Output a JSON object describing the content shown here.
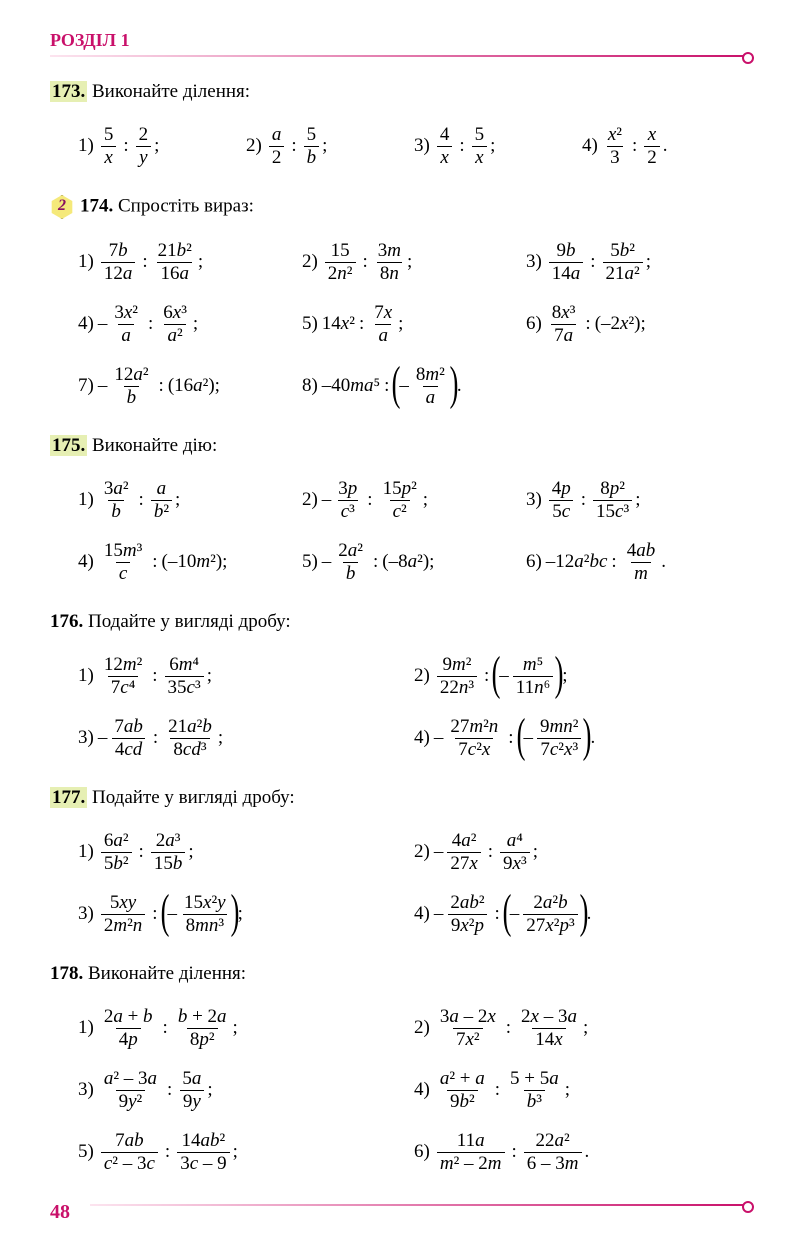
{
  "header": {
    "section": "РОЗДІЛ 1",
    "page_num": "48"
  },
  "colors": {
    "accent": "#c9106a",
    "highlight_bg": "#e6efb3",
    "badge_bg": "#f5e97a"
  },
  "problems": {
    "p173": {
      "num": "173.",
      "title": "Виконайте ділення:",
      "highlighted": true,
      "cols": 4,
      "items": [
        {
          "n": "1)",
          "a": {
            "num": "5",
            "den": "x"
          },
          "b": {
            "num": "2",
            "den": "y"
          },
          "t": ";"
        },
        {
          "n": "2)",
          "a": {
            "num": "a",
            "den": "2"
          },
          "b": {
            "num": "5",
            "den": "b"
          },
          "t": ";"
        },
        {
          "n": "3)",
          "a": {
            "num": "4",
            "den": "x"
          },
          "b": {
            "num": "5",
            "den": "x"
          },
          "t": ";"
        },
        {
          "n": "4)",
          "a": {
            "num": "x²",
            "den": "3"
          },
          "b": {
            "num": "x",
            "den": "2"
          },
          "t": "."
        }
      ]
    },
    "p174": {
      "num": "174.",
      "title": "Спростіть вираз:",
      "highlighted": false,
      "badge": "2",
      "cols": 3,
      "items": [
        {
          "n": "1)",
          "a": {
            "num": "7b",
            "den": "12a"
          },
          "b": {
            "num": "21b²",
            "den": "16a"
          },
          "t": ";"
        },
        {
          "n": "2)",
          "a": {
            "num": "15",
            "den": "2n²"
          },
          "b": {
            "num": "3m",
            "den": "8n"
          },
          "t": ";"
        },
        {
          "n": "3)",
          "a": {
            "num": "9b",
            "den": "14a"
          },
          "b": {
            "num": "5b²",
            "den": "21a²"
          },
          "t": ";"
        },
        {
          "n": "4)",
          "neg_a": true,
          "a": {
            "num": "3x²",
            "den": "a"
          },
          "b": {
            "num": "6x³",
            "den": "a²"
          },
          "t": ";"
        },
        {
          "n": "5)",
          "a_plain": "14x²",
          "b": {
            "num": "7x",
            "den": "a"
          },
          "t": ";"
        },
        {
          "n": "6)",
          "a": {
            "num": "8x³",
            "den": "7a"
          },
          "b_plain": "(–2x²)",
          "t": ";"
        },
        {
          "n": "7)",
          "neg_a": true,
          "a": {
            "num": "12a²",
            "den": "b"
          },
          "b_plain": "(16a²)",
          "t": ";"
        },
        {
          "n": "8)",
          "a_plain": "–40ma⁵",
          "b_paren": true,
          "neg_b": true,
          "b": {
            "num": "8m²",
            "den": "a"
          },
          "t": "."
        }
      ]
    },
    "p175": {
      "num": "175.",
      "title": "Виконайте дію:",
      "highlighted": true,
      "cols": 3,
      "items": [
        {
          "n": "1)",
          "a": {
            "num": "3a²",
            "den": "b"
          },
          "b": {
            "num": "a",
            "den": "b²"
          },
          "t": ";"
        },
        {
          "n": "2)",
          "neg_a": true,
          "a": {
            "num": "3p",
            "den": "c³"
          },
          "b": {
            "num": "15p²",
            "den": "c²"
          },
          "t": ";"
        },
        {
          "n": "3)",
          "a": {
            "num": "4p",
            "den": "5c"
          },
          "b": {
            "num": "8p²",
            "den": "15c³"
          },
          "t": ";"
        },
        {
          "n": "4)",
          "a": {
            "num": "15m³",
            "den": "c"
          },
          "b_plain": "(–10m²)",
          "t": ";"
        },
        {
          "n": "5)",
          "neg_a": true,
          "a": {
            "num": "2a²",
            "den": "b"
          },
          "b_plain": "(–8a²)",
          "t": ";"
        },
        {
          "n": "6)",
          "a_plain": "–12a²bc",
          "b": {
            "num": "4ab",
            "den": "m"
          },
          "t": "."
        }
      ]
    },
    "p176": {
      "num": "176.",
      "title": "Подайте у вигляді дробу:",
      "highlighted": false,
      "cols": 2,
      "items": [
        {
          "n": "1)",
          "a": {
            "num": "12m²",
            "den": "7c⁴"
          },
          "b": {
            "num": "6m⁴",
            "den": "35c³"
          },
          "t": ";"
        },
        {
          "n": "2)",
          "a": {
            "num": "9m²",
            "den": "22n³"
          },
          "b_paren": true,
          "neg_b": true,
          "b": {
            "num": "m⁵",
            "den": "11n⁶"
          },
          "t": ";"
        },
        {
          "n": "3)",
          "neg_a": true,
          "a": {
            "num": "7ab",
            "den": "4cd"
          },
          "b": {
            "num": "21a²b",
            "den": "8cd³"
          },
          "t": ";"
        },
        {
          "n": "4)",
          "neg_a": true,
          "a": {
            "num": "27m²n",
            "den": "7c²x"
          },
          "b_paren": true,
          "neg_b": true,
          "b": {
            "num": "9mn²",
            "den": "7c²x³"
          },
          "t": "."
        }
      ]
    },
    "p177": {
      "num": "177.",
      "title": "Подайте у вигляді дробу:",
      "highlighted": true,
      "cols": 2,
      "items": [
        {
          "n": "1)",
          "a": {
            "num": "6a²",
            "den": "5b²"
          },
          "b": {
            "num": "2a³",
            "den": "15b"
          },
          "t": ";"
        },
        {
          "n": "2)",
          "neg_a": true,
          "a": {
            "num": "4a²",
            "den": "27x"
          },
          "b": {
            "num": "a⁴",
            "den": "9x³"
          },
          "t": ";"
        },
        {
          "n": "3)",
          "a": {
            "num": "5xy",
            "den": "2m²n"
          },
          "b_paren": true,
          "neg_b": true,
          "b": {
            "num": "15x²y",
            "den": "8mn³"
          },
          "t": ";"
        },
        {
          "n": "4)",
          "neg_a": true,
          "a": {
            "num": "2ab²",
            "den": "9x²p"
          },
          "b_paren": true,
          "neg_b": true,
          "b": {
            "num": "2a²b",
            "den": "27x²p³"
          },
          "t": "."
        }
      ]
    },
    "p178": {
      "num": "178.",
      "title": "Виконайте ділення:",
      "highlighted": false,
      "cols": 2,
      "items": [
        {
          "n": "1)",
          "a": {
            "num": "2a + b",
            "den": "4p"
          },
          "b": {
            "num": "b + 2a",
            "den": "8p²"
          },
          "t": ";"
        },
        {
          "n": "2)",
          "a": {
            "num": "3a – 2x",
            "den": "7x²"
          },
          "b": {
            "num": "2x – 3a",
            "den": "14x"
          },
          "t": ";"
        },
        {
          "n": "3)",
          "a": {
            "num": "a² – 3a",
            "den": "9y²"
          },
          "b": {
            "num": "5a",
            "den": "9y"
          },
          "t": ";"
        },
        {
          "n": "4)",
          "a": {
            "num": "a² + a",
            "den": "9b²"
          },
          "b": {
            "num": "5 + 5a",
            "den": "b³"
          },
          "t": ";"
        },
        {
          "n": "5)",
          "a": {
            "num": "7ab",
            "den": "c² – 3c"
          },
          "b": {
            "num": "14ab²",
            "den": "3c – 9"
          },
          "t": ";"
        },
        {
          "n": "6)",
          "a": {
            "num": "11a",
            "den": "m² – 2m"
          },
          "b": {
            "num": "22a²",
            "den": "6 – 3m"
          },
          "t": "."
        }
      ]
    }
  }
}
